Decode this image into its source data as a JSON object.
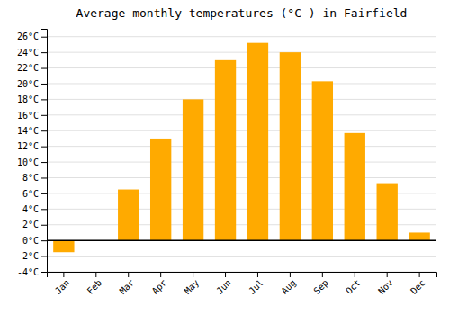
{
  "chart_data": {
    "type": "bar",
    "title": "Average monthly temperatures (°C ) in Fairfield",
    "categories": [
      "Jan",
      "Feb",
      "Mar",
      "Apr",
      "May",
      "Jun",
      "Jul",
      "Aug",
      "Sep",
      "Oct",
      "Nov",
      "Dec"
    ],
    "values": [
      -1.5,
      0.0,
      6.5,
      13.0,
      18.0,
      23.0,
      25.2,
      24.0,
      20.3,
      13.7,
      7.3,
      1.0
    ],
    "color": "#FFAA00",
    "ylim": [
      -4,
      27
    ],
    "yticks": [
      {
        "value": -4,
        "label": "-4°C"
      },
      {
        "value": -2,
        "label": "-2°C"
      },
      {
        "value": 0,
        "label": "0°C"
      },
      {
        "value": 2,
        "label": "2°C"
      },
      {
        "value": 4,
        "label": "4°C"
      },
      {
        "value": 6,
        "label": "6°C"
      },
      {
        "value": 8,
        "label": "8°C"
      },
      {
        "value": 10,
        "label": "10°C"
      },
      {
        "value": 12,
        "label": "12°C"
      },
      {
        "value": 14,
        "label": "14°C"
      },
      {
        "value": 16,
        "label": "16°C"
      },
      {
        "value": 18,
        "label": "18°C"
      },
      {
        "value": 20,
        "label": "20°C"
      },
      {
        "value": 22,
        "label": "22°C"
      },
      {
        "value": 24,
        "label": "24°C"
      },
      {
        "value": 26,
        "label": "26°C"
      }
    ],
    "grid": true
  }
}
